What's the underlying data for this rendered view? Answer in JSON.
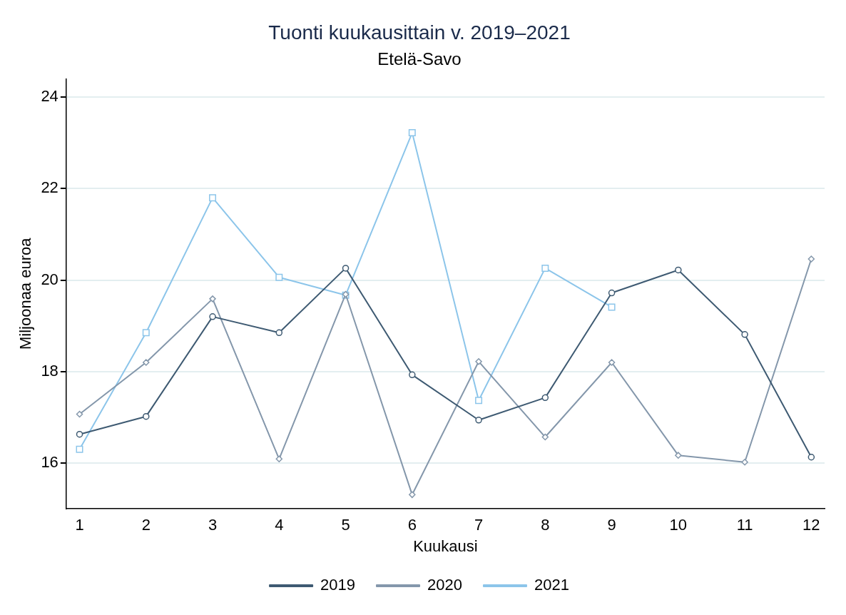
{
  "chart_data": {
    "type": "line",
    "title": "Tuonti kuukausittain v. 2019–2021",
    "subtitle": "Etelä-Savo",
    "xlabel": "Kuukausi",
    "ylabel": "Miljoonaa euroa",
    "x": [
      1,
      2,
      3,
      4,
      5,
      6,
      7,
      8,
      9,
      10,
      11,
      12
    ],
    "series": [
      {
        "name": "2019",
        "color": "#3e5a72",
        "marker": "circle",
        "values": [
          16.63,
          17.02,
          19.2,
          18.85,
          20.26,
          17.93,
          16.94,
          17.43,
          19.72,
          20.22,
          18.81,
          16.13
        ]
      },
      {
        "name": "2020",
        "color": "#8497ab",
        "marker": "diamond",
        "values": [
          17.07,
          18.2,
          19.59,
          16.09,
          19.69,
          15.31,
          18.22,
          16.57,
          18.2,
          16.17,
          16.02,
          20.46
        ]
      },
      {
        "name": "2021",
        "color": "#8cc5ea",
        "marker": "square",
        "values": [
          16.3,
          18.85,
          21.8,
          20.06,
          19.67,
          23.22,
          17.37,
          20.26,
          19.41,
          null,
          null,
          null
        ]
      }
    ],
    "xlim": [
      0.8,
      12.2
    ],
    "xticks": [
      1,
      2,
      3,
      4,
      5,
      6,
      7,
      8,
      9,
      10,
      11,
      12
    ],
    "ylim": [
      15,
      24.4
    ],
    "yticks": [
      16,
      18,
      20,
      22,
      24
    ],
    "grid": "y",
    "legend": "bottom",
    "line_style": "solid"
  }
}
